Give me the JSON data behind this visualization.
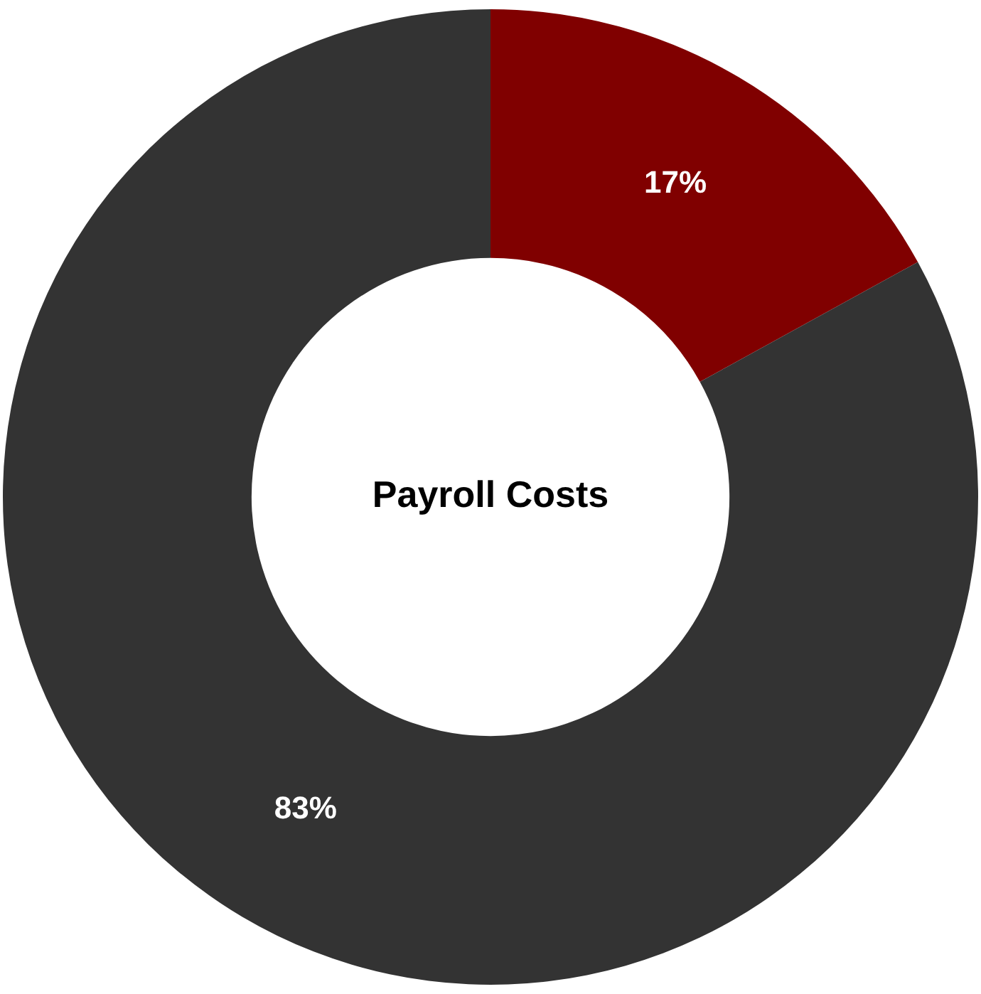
{
  "chart_data": {
    "type": "donut",
    "title": "Payroll Costs",
    "categories": [
      null,
      null
    ],
    "values": [
      17,
      83
    ],
    "colors": [
      "#800000",
      "#333333"
    ],
    "value_labels": [
      "17%",
      "83%"
    ],
    "legend": false
  }
}
